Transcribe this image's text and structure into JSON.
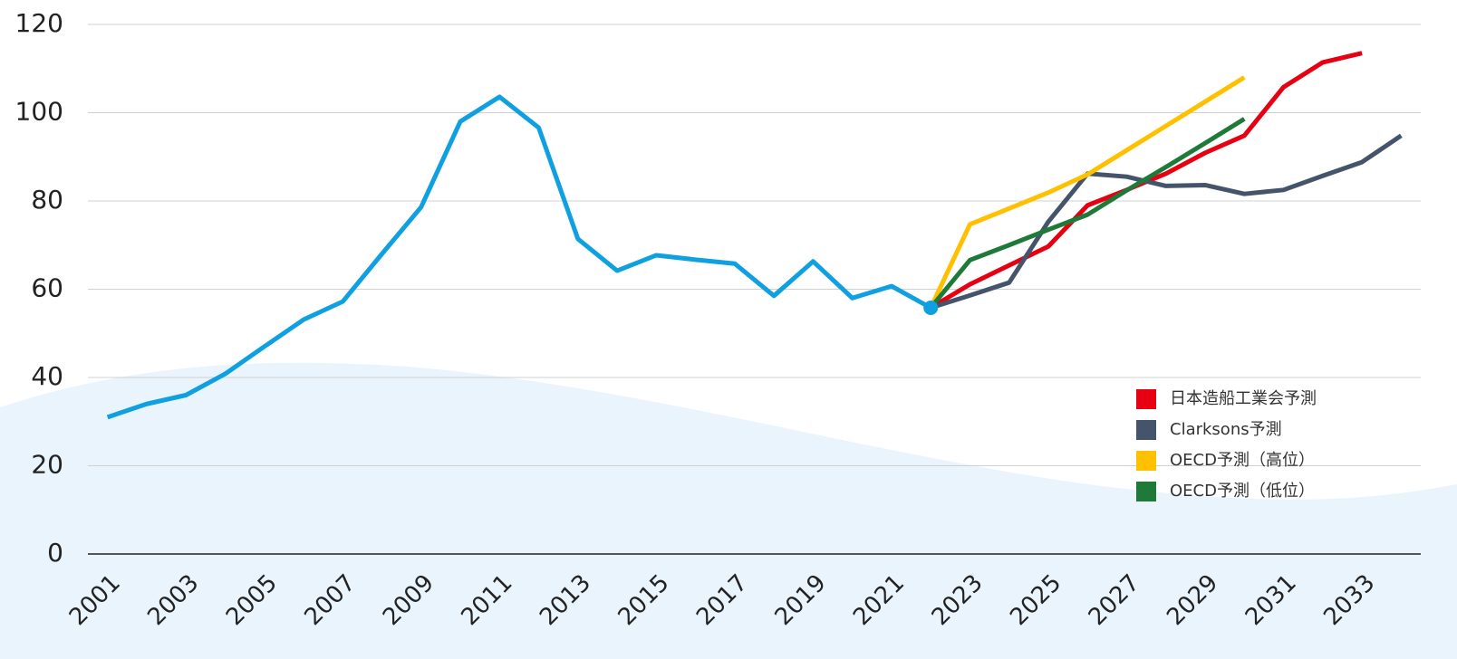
{
  "chart_data": {
    "type": "line",
    "x": [
      2001,
      2002,
      2003,
      2004,
      2005,
      2006,
      2007,
      2008,
      2009,
      2010,
      2011,
      2012,
      2013,
      2014,
      2015,
      2016,
      2017,
      2018,
      2019,
      2020,
      2021,
      2022,
      2023,
      2024,
      2025,
      2026,
      2027,
      2028,
      2029,
      2030,
      2031,
      2032,
      2033,
      2034
    ],
    "xlim": [
      2000.5,
      2034.5
    ],
    "xticks": [
      2001,
      2003,
      2005,
      2007,
      2009,
      2011,
      2013,
      2015,
      2017,
      2019,
      2021,
      2023,
      2025,
      2027,
      2029,
      2031,
      2033
    ],
    "ylim": [
      0,
      120
    ],
    "yticks": [
      0,
      20,
      40,
      60,
      80,
      100,
      120
    ],
    "grid": true,
    "legend": "lower right",
    "series": [
      {
        "color": "#0ea0e0",
        "values": [
          31,
          34,
          36,
          40.8,
          47,
          53.1,
          57.2,
          68,
          78.6,
          98,
          103.6,
          96.6,
          71.4,
          64.2,
          67.7,
          66.7,
          65.8,
          58.5,
          66.3,
          58,
          60.7,
          55.8,
          null,
          null,
          null,
          null,
          null,
          null,
          null,
          null,
          null,
          null,
          null,
          null
        ]
      },
      {
        "name": "日本造船工業会予測",
        "color": "#e60012",
        "values": [
          null,
          null,
          null,
          null,
          null,
          null,
          null,
          null,
          null,
          null,
          null,
          null,
          null,
          null,
          null,
          null,
          null,
          null,
          null,
          null,
          null,
          55.8,
          61.1,
          65.4,
          69.7,
          79,
          82.5,
          86.2,
          90.9,
          94.8,
          105.8,
          111.4,
          113.5,
          null
        ]
      },
      {
        "name": "Clarksons予測",
        "color": "#44546a",
        "values": [
          null,
          null,
          null,
          null,
          null,
          null,
          null,
          null,
          null,
          null,
          null,
          null,
          null,
          null,
          null,
          null,
          null,
          null,
          null,
          null,
          null,
          55.8,
          58.6,
          61.5,
          75.3,
          86.2,
          85.5,
          83.4,
          83.6,
          81.6,
          82.5,
          85.7,
          88.8,
          94.8
        ]
      },
      {
        "name": "OECD予測（高位）",
        "color": "#ffc000",
        "values": [
          null,
          null,
          null,
          null,
          null,
          null,
          null,
          null,
          null,
          null,
          null,
          null,
          null,
          null,
          null,
          null,
          null,
          null,
          null,
          null,
          null,
          55.8,
          74.7,
          78.3,
          81.9,
          86,
          91.5,
          97,
          102.5,
          108,
          null,
          null,
          null,
          null
        ]
      },
      {
        "name": "OECD予測（低位）",
        "color": "#1f7a3a",
        "values": [
          null,
          null,
          null,
          null,
          null,
          null,
          null,
          null,
          null,
          null,
          null,
          null,
          null,
          null,
          null,
          null,
          null,
          null,
          null,
          null,
          null,
          55.8,
          66.6,
          70,
          73.5,
          76.9,
          82.4,
          87.7,
          93.1,
          98.6,
          null,
          null,
          null,
          null
        ]
      }
    ]
  }
}
